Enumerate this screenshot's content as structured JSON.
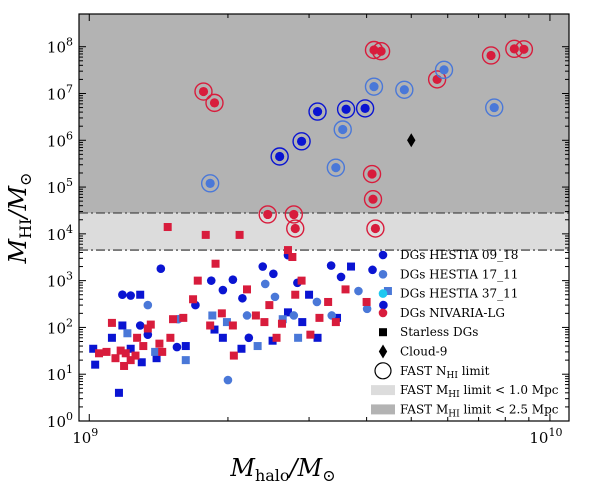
{
  "chart_data": {
    "type": "scatter",
    "xlabel": {
      "main": "M",
      "sub": "halo",
      "rest": "/M",
      "sun": "⊙"
    },
    "ylabel": {
      "main": "M",
      "sub": "HI",
      "rest": "/M",
      "sun": "⊙"
    },
    "x_scale": "log",
    "y_scale": "log",
    "xlim": [
      950000000,
      11000000000
    ],
    "ylim": [
      1,
      500000000
    ],
    "x_ticks": [
      {
        "value": 1000000000,
        "base": "10",
        "exp": "9"
      },
      {
        "value": 10000000000,
        "base": "10",
        "exp": "10"
      }
    ],
    "y_ticks": [
      {
        "value": 1,
        "base": "10",
        "exp": "0"
      },
      {
        "value": 10,
        "base": "10",
        "exp": "1"
      },
      {
        "value": 100,
        "base": "10",
        "exp": "2"
      },
      {
        "value": 1000,
        "base": "10",
        "exp": "3"
      },
      {
        "value": 10000,
        "base": "10",
        "exp": "4"
      },
      {
        "value": 100000,
        "base": "10",
        "exp": "5"
      },
      {
        "value": 1000000,
        "base": "10",
        "exp": "6"
      },
      {
        "value": 10000000,
        "base": "10",
        "exp": "7"
      },
      {
        "value": 100000000,
        "base": "10",
        "exp": "8"
      }
    ],
    "regions": [
      {
        "label": "FAST M_HI limit < 2.5 Mpc",
        "y_from": 4500,
        "y_to": 500000000,
        "color": "#b3b3b3"
      },
      {
        "label": "FAST M_HI limit < 1.0 Mpc",
        "y_from": 4500,
        "y_to": 28000,
        "color": "#dcdcdc"
      }
    ],
    "limit_lines": [
      28000,
      4500
    ],
    "colors": {
      "DGs HESTIA 09_18": "#0a14d2",
      "DGs HESTIA 17_11": "#4a78d8",
      "DGs HESTIA 37_11": "#1ec8f0",
      "DGs NIVARIA-LG": "#d81c3c",
      "Cloud-9": "#000000"
    },
    "series": [
      {
        "name": "DGs HESTIA 09_18",
        "marker": "circle",
        "points": [
          [
            1180000000,
            500
          ],
          [
            1230000000,
            480
          ],
          [
            1290000000,
            110
          ],
          [
            1340000000,
            70
          ],
          [
            1430000000,
            1800
          ],
          [
            1550000000,
            38
          ],
          [
            1700000000,
            300
          ],
          [
            1840000000,
            1000
          ],
          [
            1950000000,
            630
          ],
          [
            2050000000,
            1050
          ],
          [
            2220000000,
            60
          ],
          [
            2380000000,
            2000
          ],
          [
            2510000000,
            1400
          ],
          [
            2700000000,
            3500
          ],
          [
            2830000000,
            900
          ],
          [
            3350000000,
            2100
          ],
          [
            3520000000,
            1200
          ],
          [
            4120000000,
            1700
          ],
          [
            4350000000,
            300
          ],
          [
            2150000000,
            420
          ]
        ]
      },
      {
        "name": "DGs HESTIA 09_18",
        "marker": "square",
        "points": [
          [
            1030000000,
            16
          ],
          [
            1020000000,
            35
          ],
          [
            1120000000,
            60
          ],
          [
            1160000000,
            4
          ],
          [
            1180000000,
            110
          ],
          [
            1230000000,
            35
          ],
          [
            1300000000,
            18
          ],
          [
            1400000000,
            22
          ],
          [
            1620000000,
            40
          ],
          [
            1870000000,
            90
          ],
          [
            1950000000,
            60
          ],
          [
            2140000000,
            35
          ],
          [
            2500000000,
            52
          ],
          [
            2700000000,
            210
          ],
          [
            2900000000,
            130
          ],
          [
            3000000000,
            500
          ],
          [
            3130000000,
            60
          ],
          [
            3450000000,
            160
          ],
          [
            3700000000,
            2000
          ],
          [
            1290000000,
            500
          ]
        ]
      },
      {
        "name": "DGs HESTIA 17_11",
        "marker": "circle",
        "points": [
          [
            1340000000,
            300
          ],
          [
            1560000000,
            150
          ],
          [
            2000000000,
            7.5
          ],
          [
            2200000000,
            180
          ],
          [
            2530000000,
            450
          ],
          [
            2780000000,
            180
          ],
          [
            3120000000,
            350
          ],
          [
            3360000000,
            180
          ],
          [
            3840000000,
            600
          ],
          [
            4010000000,
            250
          ],
          [
            2410000000,
            850
          ]
        ]
      },
      {
        "name": "DGs HESTIA 17_11",
        "marker": "square",
        "points": [
          [
            1210000000,
            75
          ],
          [
            1390000000,
            30
          ],
          [
            1620000000,
            20
          ],
          [
            1990000000,
            130
          ],
          [
            2320000000,
            40
          ],
          [
            2630000000,
            150
          ],
          [
            2840000000,
            60
          ],
          [
            4450000000,
            600
          ],
          [
            1850000000,
            180
          ]
        ]
      },
      {
        "name": "DGs NIVARIA-LG",
        "marker": "square",
        "points": [
          [
            1050000000,
            28
          ],
          [
            1090000000,
            30
          ],
          [
            1120000000,
            125
          ],
          [
            1140000000,
            22
          ],
          [
            1170000000,
            32
          ],
          [
            1200000000,
            28
          ],
          [
            1230000000,
            20
          ],
          [
            1270000000,
            60
          ],
          [
            1340000000,
            95
          ],
          [
            1360000000,
            115
          ],
          [
            1420000000,
            45
          ],
          [
            1440000000,
            30
          ],
          [
            1480000000,
            14000
          ],
          [
            1520000000,
            150
          ],
          [
            1600000000,
            160
          ],
          [
            1680000000,
            400
          ],
          [
            1720000000,
            1000
          ],
          [
            1790000000,
            9500
          ],
          [
            1830000000,
            110
          ],
          [
            1880000000,
            2300
          ],
          [
            1940000000,
            200
          ],
          [
            2050000000,
            110
          ],
          [
            2120000000,
            9500
          ],
          [
            2200000000,
            650
          ],
          [
            2300000000,
            180
          ],
          [
            2400000000,
            130
          ],
          [
            2550000000,
            60
          ],
          [
            2620000000,
            120
          ],
          [
            2700000000,
            4500
          ],
          [
            2760000000,
            3200
          ],
          [
            2800000000,
            500
          ],
          [
            2890000000,
            1000
          ],
          [
            3020000000,
            70
          ],
          [
            3160000000,
            160
          ],
          [
            3300000000,
            350
          ],
          [
            3430000000,
            130
          ],
          [
            3600000000,
            650
          ],
          [
            4000000000,
            350
          ],
          [
            1310000000,
            40
          ],
          [
            1500000000,
            60
          ],
          [
            2460000000,
            300
          ],
          [
            2060000000,
            25
          ],
          [
            1190000000,
            15
          ],
          [
            1260000000,
            25
          ]
        ]
      },
      {
        "name": "FAST N_HI limit",
        "marker": "ring",
        "points": [
          [
            1770000000,
            11000000,
            "DGs NIVARIA-LG"
          ],
          [
            1870000000,
            6300000,
            "DGs NIVARIA-LG"
          ],
          [
            1830000000,
            120000,
            "DGs HESTIA 17_11"
          ],
          [
            2590000000,
            450000,
            "DGs HESTIA 09_18"
          ],
          [
            2890000000,
            950000,
            "DGs HESTIA 09_18"
          ],
          [
            3130000000,
            4100000,
            "DGs HESTIA 09_18"
          ],
          [
            3550000000,
            1700000,
            "DGs HESTIA 17_11"
          ],
          [
            3430000000,
            260000,
            "DGs HESTIA 17_11"
          ],
          [
            3610000000,
            4600000,
            "DGs HESTIA 09_18"
          ],
          [
            3970000000,
            4800000,
            "DGs HESTIA 09_18"
          ],
          [
            4150000000,
            85000000,
            "DGs NIVARIA-LG"
          ],
          [
            4300000000,
            80000000,
            "DGs NIVARIA-LG"
          ],
          [
            4150000000,
            14000000,
            "DGs HESTIA 17_11"
          ],
          [
            4830000000,
            12000000,
            "DGs HESTIA 17_11"
          ],
          [
            5690000000,
            20000000,
            "DGs NIVARIA-LG"
          ],
          [
            5890000000,
            32000000,
            "DGs HESTIA 17_11"
          ],
          [
            7450000000,
            65000000,
            "DGs NIVARIA-LG"
          ],
          [
            7570000000,
            5000000,
            "DGs HESTIA 17_11"
          ],
          [
            8370000000,
            90000000,
            "DGs NIVARIA-LG"
          ],
          [
            8780000000,
            88000000,
            "DGs NIVARIA-LG"
          ],
          [
            4110000000,
            190000,
            "DGs NIVARIA-LG"
          ],
          [
            4130000000,
            55000,
            "DGs NIVARIA-LG"
          ],
          [
            4180000000,
            13000,
            "DGs NIVARIA-LG"
          ],
          [
            2440000000,
            26000,
            "DGs NIVARIA-LG"
          ],
          [
            2780000000,
            26000,
            "DGs NIVARIA-LG"
          ],
          [
            2800000000,
            13000,
            "DGs NIVARIA-LG"
          ]
        ]
      },
      {
        "name": "Cloud-9",
        "marker": "diamond",
        "points": [
          [
            5000000000,
            1000000
          ]
        ]
      }
    ],
    "legend": {
      "position": "lower-right",
      "entries": [
        {
          "label": "DGs HESTIA 09_18",
          "marker": "circle",
          "color": "#0a14d2"
        },
        {
          "label": "DGs HESTIA 17_11",
          "marker": "circle",
          "color": "#4a78d8"
        },
        {
          "label": "DGs HESTIA 37_11",
          "marker": "circle",
          "color": "#1ec8f0"
        },
        {
          "label": "DGs NIVARIA-LG",
          "marker": "circle",
          "color": "#d81c3c"
        },
        {
          "label": "Starless DGs",
          "marker": "square",
          "color": "#000000"
        },
        {
          "label": "Cloud-9",
          "marker": "diamond",
          "color": "#000000"
        },
        {
          "label": "FAST N",
          "sub": "HI",
          "suffix": " limit",
          "marker": "ring",
          "color": "#000000"
        },
        {
          "label": "FAST M",
          "sub": "HI",
          "suffix": " limit < 1.0 Mpc",
          "marker": "patch",
          "color": "#dcdcdc"
        },
        {
          "label": "FAST M",
          "sub": "HI",
          "suffix": " limit < 2.5 Mpc",
          "marker": "patch",
          "color": "#b3b3b3"
        }
      ]
    }
  }
}
